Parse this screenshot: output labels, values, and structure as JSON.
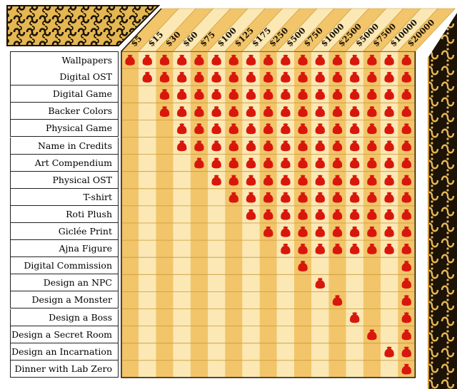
{
  "tiers": [
    "$5",
    "$15",
    "$30",
    "$60",
    "$75",
    "$100",
    "$125",
    "$175",
    "$250",
    "$500",
    "$750",
    "$1000",
    "$2500",
    "$5000",
    "$7500",
    "$10000",
    "$20000"
  ],
  "rewards": [
    {
      "label": "Wallpapers",
      "tiers": [
        "$5",
        "$15",
        "$30",
        "$60",
        "$75",
        "$100",
        "$125",
        "$175",
        "$250",
        "$500",
        "$750",
        "$1000",
        "$2500",
        "$5000",
        "$7500",
        "$10000",
        "$20000"
      ]
    },
    {
      "label": "Digital OST",
      "tiers": [
        "$15",
        "$30",
        "$60",
        "$75",
        "$100",
        "$125",
        "$175",
        "$250",
        "$500",
        "$750",
        "$1000",
        "$2500",
        "$5000",
        "$7500",
        "$10000",
        "$20000"
      ]
    },
    {
      "label": "Digital Game",
      "tiers": [
        "$30",
        "$60",
        "$75",
        "$100",
        "$125",
        "$175",
        "$250",
        "$500",
        "$750",
        "$1000",
        "$2500",
        "$5000",
        "$7500",
        "$10000",
        "$20000"
      ]
    },
    {
      "label": "Backer Colors",
      "tiers": [
        "$30",
        "$60",
        "$75",
        "$100",
        "$125",
        "$175",
        "$250",
        "$500",
        "$750",
        "$1000",
        "$2500",
        "$5000",
        "$7500",
        "$10000",
        "$20000"
      ]
    },
    {
      "label": "Physical Game",
      "tiers": [
        "$60",
        "$75",
        "$100",
        "$125",
        "$175",
        "$250",
        "$500",
        "$750",
        "$1000",
        "$2500",
        "$5000",
        "$7500",
        "$10000",
        "$20000"
      ]
    },
    {
      "label": "Name in Credits",
      "tiers": [
        "$60",
        "$75",
        "$100",
        "$125",
        "$175",
        "$250",
        "$500",
        "$750",
        "$1000",
        "$2500",
        "$5000",
        "$7500",
        "$10000",
        "$20000"
      ]
    },
    {
      "label": "Art Compendium",
      "tiers": [
        "$75",
        "$100",
        "$125",
        "$175",
        "$250",
        "$500",
        "$750",
        "$1000",
        "$2500",
        "$5000",
        "$7500",
        "$10000",
        "$20000"
      ]
    },
    {
      "label": "Physical OST",
      "tiers": [
        "$100",
        "$125",
        "$175",
        "$250",
        "$500",
        "$750",
        "$1000",
        "$2500",
        "$5000",
        "$7500",
        "$10000",
        "$20000"
      ]
    },
    {
      "label": "T-shirt",
      "tiers": [
        "$125",
        "$175",
        "$250",
        "$500",
        "$750",
        "$1000",
        "$2500",
        "$5000",
        "$7500",
        "$10000",
        "$20000"
      ]
    },
    {
      "label": "Roti Plush",
      "tiers": [
        "$175",
        "$250",
        "$500",
        "$750",
        "$1000",
        "$2500",
        "$5000",
        "$7500",
        "$10000",
        "$20000"
      ]
    },
    {
      "label": "Giclée Print",
      "tiers": [
        "$250",
        "$500",
        "$750",
        "$1000",
        "$2500",
        "$5000",
        "$7500",
        "$10000",
        "$20000"
      ]
    },
    {
      "label": "Ajna Figure",
      "tiers": [
        "$500",
        "$750",
        "$1000",
        "$2500",
        "$5000",
        "$7500",
        "$10000",
        "$20000"
      ]
    },
    {
      "label": "Digital Commission",
      "tiers": [
        "$750",
        "$20000"
      ]
    },
    {
      "label": "Design an NPC",
      "tiers": [
        "$1000",
        "$20000"
      ]
    },
    {
      "label": "Design a Monster",
      "tiers": [
        "$2500",
        "$20000"
      ]
    },
    {
      "label": "Design a Boss",
      "tiers": [
        "$5000",
        "$20000"
      ]
    },
    {
      "label": "Design a Secret Room",
      "tiers": [
        "$7500",
        "$20000"
      ]
    },
    {
      "label": "Design an Incarnation",
      "tiers": [
        "$10000",
        "$20000"
      ]
    },
    {
      "label": "Dinner with Lab Zero",
      "tiers": [
        "$20000"
      ]
    }
  ],
  "colors": {
    "gold": "#f2c56a",
    "gold_pale": "#fbe8b4",
    "gold_dark": "#c99a3a",
    "marker": "#d8170c",
    "ornament": "#2a1a08",
    "frame": "#e4b753"
  }
}
